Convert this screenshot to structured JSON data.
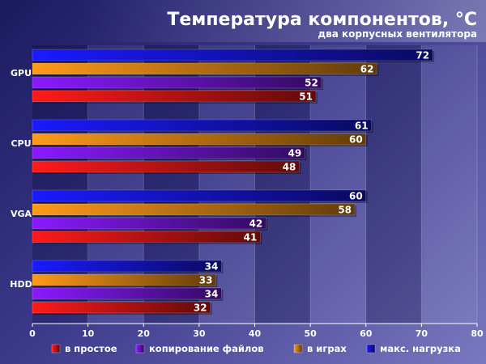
{
  "chart_data": {
    "type": "bar",
    "orientation": "horizontal",
    "title": "Температура компонентов, °C",
    "subtitle": "два корпусных вентилятора",
    "categories": [
      "GPU",
      "CPU",
      "VGA",
      "HDD"
    ],
    "series": [
      {
        "name": "макс. нагрузка",
        "color": "#1a1aff",
        "values": [
          72,
          61,
          60,
          34
        ]
      },
      {
        "name": "в играх",
        "color": "#ff9a1a",
        "values": [
          62,
          60,
          58,
          33
        ]
      },
      {
        "name": "копирование файлов",
        "color": "#8a1aff",
        "values": [
          52,
          49,
          42,
          34
        ]
      },
      {
        "name": "в простое",
        "color": "#ff1a1a",
        "values": [
          51,
          48,
          41,
          32
        ]
      }
    ],
    "xlim": [
      0,
      80
    ],
    "xticks": [
      "0",
      "10",
      "20",
      "30",
      "40",
      "50",
      "60",
      "70",
      "80"
    ],
    "legend": {
      "placement": "bottom",
      "order": [
        "в простое",
        "копирование файлов",
        "в играх",
        "макс. нагрузка"
      ]
    },
    "grid": "vertical-bands"
  }
}
